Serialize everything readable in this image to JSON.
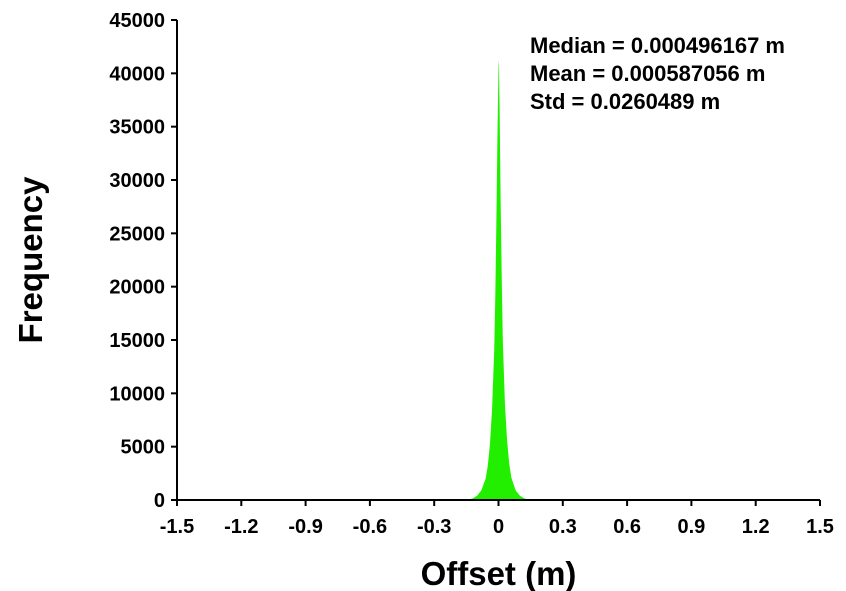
{
  "chart_data": {
    "type": "area",
    "title": "",
    "xlabel": "Offset (m)",
    "ylabel": "Frequency",
    "xlim": [
      -1.5,
      1.5
    ],
    "ylim": [
      0,
      45000
    ],
    "x_ticks": [
      "-1.5",
      "-1.2",
      "-0.9",
      "-0.6",
      "-0.3",
      "0",
      "0.3",
      "0.6",
      "0.9",
      "1.2",
      "1.5"
    ],
    "y_ticks": [
      "0",
      "5000",
      "10000",
      "15000",
      "20000",
      "25000",
      "30000",
      "35000",
      "40000",
      "45000"
    ],
    "grid": false,
    "fill_color": "#22ee00",
    "annotations": [
      "Median = 0.000496167 m",
      "Mean = 0.000587056 m",
      "Std = 0.0260489 m"
    ],
    "x": [
      -0.15,
      -0.12,
      -0.1,
      -0.08,
      -0.06,
      -0.05,
      -0.04,
      -0.03,
      -0.02,
      -0.015,
      -0.01,
      -0.005,
      0.0,
      0.002,
      0.005,
      0.01,
      0.015,
      0.02,
      0.03,
      0.04,
      0.05,
      0.06,
      0.08,
      0.1,
      0.12,
      0.15
    ],
    "y": [
      0,
      150,
      400,
      900,
      2000,
      3200,
      5200,
      8500,
      14000,
      19000,
      26000,
      34000,
      40500,
      41300,
      37000,
      28000,
      21000,
      15000,
      9000,
      5600,
      3400,
      2100,
      900,
      400,
      150,
      0
    ]
  }
}
